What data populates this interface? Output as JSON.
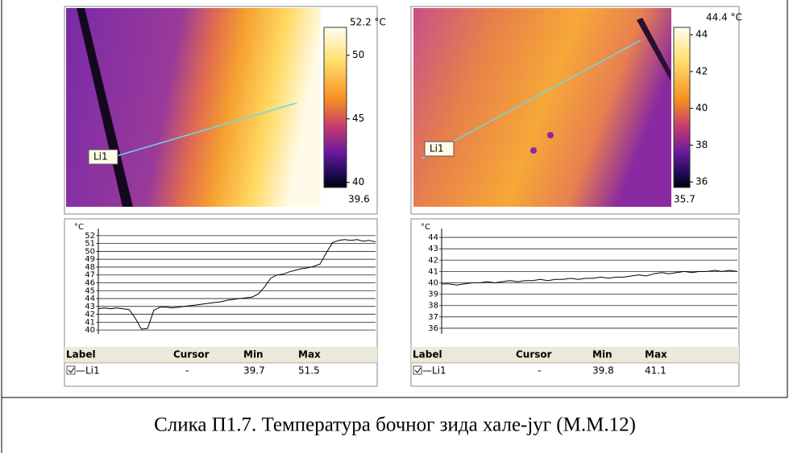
{
  "panels": [
    {
      "image": {
        "max_label": "52.2 °C",
        "min_label": "39.6",
        "scale_lim": [
          39.6,
          52.2
        ],
        "scale_ticks": [
          50,
          45,
          40
        ],
        "line_label": "Li1"
      },
      "profile": {
        "unit": "°C",
        "ylim": [
          39.5,
          52.5
        ],
        "yticks": [
          40,
          41,
          42,
          43,
          44,
          45,
          46,
          47,
          48,
          49,
          50,
          51,
          52
        ],
        "values": [
          42.7,
          42.8,
          42.7,
          42.8,
          42.7,
          42.6,
          41.5,
          40.1,
          40.2,
          42.5,
          42.9,
          42.9,
          42.8,
          42.9,
          43.0,
          43.1,
          43.2,
          43.3,
          43.4,
          43.5,
          43.6,
          43.8,
          43.9,
          44.0,
          44.1,
          44.2,
          44.6,
          45.5,
          46.6,
          47.0,
          47.1,
          47.4,
          47.6,
          47.8,
          47.9,
          48.1,
          48.4,
          49.8,
          51.1,
          51.4,
          51.5,
          51.4,
          51.5,
          51.3,
          51.4,
          51.2
        ]
      },
      "table": {
        "headers": [
          "Label",
          "Cursor",
          "Min",
          "Max"
        ],
        "row": [
          "—Li1",
          "-",
          39.7,
          51.5
        ]
      }
    },
    {
      "image": {
        "max_label": "44.4 °C",
        "min_label": "35.7",
        "scale_lim": [
          35.7,
          44.4
        ],
        "scale_ticks": [
          44,
          42,
          40,
          38,
          36
        ],
        "line_label": "Li1"
      },
      "profile": {
        "unit": "°C",
        "ylim": [
          35.5,
          44.5
        ],
        "yticks": [
          36,
          37,
          38,
          39,
          40,
          41,
          42,
          43,
          44
        ],
        "values": [
          39.9,
          39.9,
          39.8,
          39.9,
          40.0,
          40.0,
          40.1,
          40.0,
          40.1,
          40.2,
          40.1,
          40.2,
          40.2,
          40.3,
          40.2,
          40.3,
          40.3,
          40.4,
          40.3,
          40.4,
          40.4,
          40.5,
          40.4,
          40.5,
          40.5,
          40.6,
          40.7,
          40.6,
          40.8,
          40.9,
          40.8,
          40.9,
          41.0,
          40.9,
          41.0,
          41.0,
          41.1,
          41.0,
          41.1,
          41.0
        ]
      },
      "table": {
        "headers": [
          "Label",
          "Cursor",
          "Min",
          "Max"
        ],
        "row": [
          "—Li1",
          "-",
          39.8,
          41.1
        ]
      }
    }
  ],
  "caption": "Слика П1.7. Температура бочног зида хале-југ (М.М.12)"
}
